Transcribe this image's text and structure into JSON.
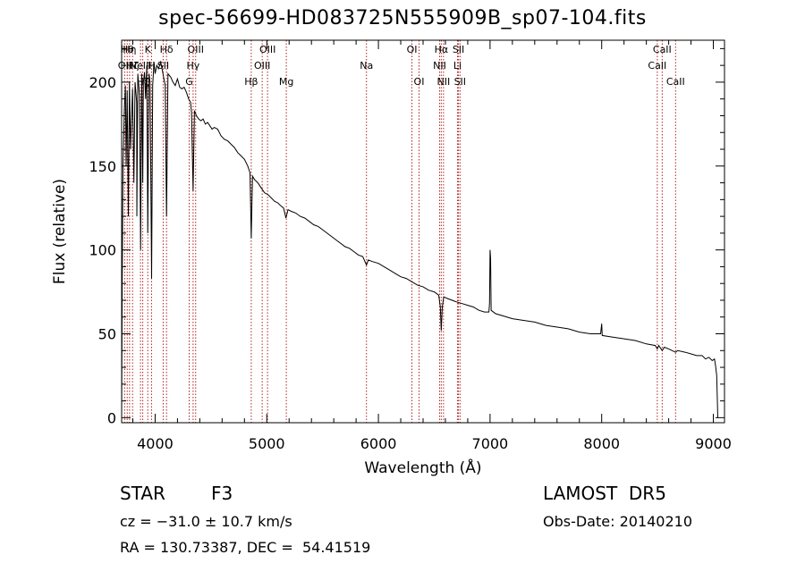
{
  "title": "spec-56699-HD083725N555909B_sp07-104.fits",
  "info": {
    "object_class": "STAR",
    "subclass": "F3",
    "survey": "LAMOST  DR5",
    "cz": "cz = −31.0 ± 10.7 km/s",
    "obs_date": "Obs-Date: 20140210",
    "coords": "RA = 130.73387, DEC =  54.41519"
  },
  "chart_data": {
    "type": "line",
    "xlabel": "Wavelength (Å)",
    "ylabel": "Flux (relative)",
    "xlim": [
      3700,
      9100
    ],
    "ylim": [
      -3,
      225
    ],
    "xticks": [
      4000,
      5000,
      6000,
      7000,
      8000,
      9000
    ],
    "yticks": [
      0,
      50,
      100,
      150,
      200
    ],
    "grid": false,
    "line_color": "#000000",
    "marker_color": "#b22222",
    "series": [
      {
        "points": [
          [
            3700,
            0
          ],
          [
            3705,
            80
          ],
          [
            3712,
            150
          ],
          [
            3725,
            185
          ],
          [
            3734,
            198
          ],
          [
            3740,
            150
          ],
          [
            3750,
            195
          ],
          [
            3760,
            120
          ],
          [
            3770,
            200
          ],
          [
            3780,
            160
          ],
          [
            3798,
            196
          ],
          [
            3810,
            140
          ],
          [
            3820,
            200
          ],
          [
            3835,
            188
          ],
          [
            3836,
            120
          ],
          [
            3845,
            205
          ],
          [
            3860,
            192
          ],
          [
            3870,
            100
          ],
          [
            3880,
            205
          ],
          [
            3889,
            140
          ],
          [
            3895,
            200
          ],
          [
            3905,
            206
          ],
          [
            3915,
            190
          ],
          [
            3925,
            210
          ],
          [
            3934,
            110
          ],
          [
            3945,
            205
          ],
          [
            3955,
            200
          ],
          [
            3968,
            83
          ],
          [
            3978,
            198
          ],
          [
            3990,
            212
          ],
          [
            4000,
            205
          ],
          [
            4015,
            210
          ],
          [
            4030,
            208
          ],
          [
            4050,
            212
          ],
          [
            4070,
            205
          ],
          [
            4090,
            198
          ],
          [
            4102,
            120
          ],
          [
            4115,
            205
          ],
          [
            4140,
            203
          ],
          [
            4160,
            200
          ],
          [
            4180,
            198
          ],
          [
            4200,
            202
          ],
          [
            4220,
            197
          ],
          [
            4240,
            196
          ],
          [
            4260,
            197
          ],
          [
            4280,
            194
          ],
          [
            4300,
            190
          ],
          [
            4318,
            188
          ],
          [
            4326,
            182
          ],
          [
            4340,
            135
          ],
          [
            4352,
            183
          ],
          [
            4370,
            180
          ],
          [
            4390,
            178
          ],
          [
            4410,
            177
          ],
          [
            4430,
            178
          ],
          [
            4450,
            175
          ],
          [
            4470,
            176
          ],
          [
            4490,
            174
          ],
          [
            4510,
            172
          ],
          [
            4530,
            173
          ],
          [
            4560,
            172
          ],
          [
            4590,
            168
          ],
          [
            4620,
            166
          ],
          [
            4650,
            165
          ],
          [
            4680,
            163
          ],
          [
            4710,
            161
          ],
          [
            4740,
            158
          ],
          [
            4770,
            156
          ],
          [
            4800,
            154
          ],
          [
            4830,
            150
          ],
          [
            4850,
            146
          ],
          [
            4861,
            107
          ],
          [
            4872,
            144
          ],
          [
            4890,
            142
          ],
          [
            4920,
            140
          ],
          [
            4950,
            137
          ],
          [
            4980,
            134
          ],
          [
            5010,
            133
          ],
          [
            5040,
            131
          ],
          [
            5070,
            129
          ],
          [
            5100,
            128
          ],
          [
            5130,
            126
          ],
          [
            5150,
            125
          ],
          [
            5172,
            119
          ],
          [
            5190,
            124
          ],
          [
            5220,
            123
          ],
          [
            5260,
            122
          ],
          [
            5300,
            120
          ],
          [
            5340,
            119
          ],
          [
            5380,
            117
          ],
          [
            5420,
            115
          ],
          [
            5460,
            114
          ],
          [
            5500,
            112
          ],
          [
            5540,
            110
          ],
          [
            5580,
            108
          ],
          [
            5620,
            106
          ],
          [
            5660,
            104
          ],
          [
            5700,
            102
          ],
          [
            5740,
            101
          ],
          [
            5780,
            99
          ],
          [
            5820,
            97
          ],
          [
            5860,
            96
          ],
          [
            5893,
            91
          ],
          [
            5910,
            94
          ],
          [
            5950,
            93
          ],
          [
            6000,
            92
          ],
          [
            6050,
            90
          ],
          [
            6100,
            88
          ],
          [
            6150,
            86
          ],
          [
            6200,
            84
          ],
          [
            6250,
            83
          ],
          [
            6300,
            81
          ],
          [
            6350,
            79
          ],
          [
            6400,
            78
          ],
          [
            6450,
            76
          ],
          [
            6500,
            75
          ],
          [
            6540,
            73
          ],
          [
            6555,
            66
          ],
          [
            6563,
            52
          ],
          [
            6572,
            66
          ],
          [
            6585,
            72
          ],
          [
            6620,
            71
          ],
          [
            6660,
            70
          ],
          [
            6700,
            69
          ],
          [
            6750,
            68
          ],
          [
            6800,
            67
          ],
          [
            6850,
            66
          ],
          [
            6900,
            64
          ],
          [
            6950,
            63
          ],
          [
            6990,
            63
          ],
          [
            6995,
            68
          ],
          [
            7000,
            100
          ],
          [
            7005,
            95
          ],
          [
            7010,
            64
          ],
          [
            7050,
            62
          ],
          [
            7100,
            61
          ],
          [
            7200,
            59
          ],
          [
            7300,
            58
          ],
          [
            7400,
            57
          ],
          [
            7500,
            55
          ],
          [
            7600,
            54
          ],
          [
            7700,
            53
          ],
          [
            7800,
            51
          ],
          [
            7900,
            50
          ],
          [
            7990,
            50
          ],
          [
            7995,
            53
          ],
          [
            8000,
            56
          ],
          [
            8005,
            49
          ],
          [
            8100,
            48
          ],
          [
            8200,
            47
          ],
          [
            8300,
            46
          ],
          [
            8400,
            44
          ],
          [
            8480,
            43
          ],
          [
            8498,
            41
          ],
          [
            8510,
            43
          ],
          [
            8542,
            40
          ],
          [
            8560,
            42
          ],
          [
            8600,
            41
          ],
          [
            8662,
            39
          ],
          [
            8680,
            40
          ],
          [
            8750,
            39
          ],
          [
            8800,
            38
          ],
          [
            8850,
            37
          ],
          [
            8900,
            37
          ],
          [
            8930,
            35
          ],
          [
            8960,
            36
          ],
          [
            8990,
            34
          ],
          [
            9010,
            35
          ],
          [
            9020,
            31
          ],
          [
            9030,
            25
          ],
          [
            9040,
            0
          ]
        ]
      }
    ],
    "markers": [
      {
        "wavelength": 3727,
        "labels": [
          "OII"
        ],
        "row": 2
      },
      {
        "wavelength": 3750,
        "labels": [
          "Hθ"
        ],
        "row": 1
      },
      {
        "wavelength": 3771,
        "labels": [
          "Hη"
        ],
        "row": 1
      },
      {
        "wavelength": 3798,
        "labels": [
          "Hζ"
        ],
        "row": 2
      },
      {
        "wavelength": 3869,
        "labels": [
          "NeIII"
        ],
        "row": 2
      },
      {
        "wavelength": 3889,
        "labels": [
          "Hζ"
        ],
        "row": 3
      },
      {
        "wavelength": 3934,
        "labels": [
          "K"
        ],
        "row": 1
      },
      {
        "wavelength": 3968,
        "labels": [
          "H"
        ],
        "row": 2
      },
      {
        "wavelength": 4072,
        "labels": [
          "SII"
        ],
        "row": 2
      },
      {
        "wavelength": 4102,
        "labels": [
          "Hδ"
        ],
        "row": 1
      },
      {
        "wavelength": 4305,
        "labels": [
          "G"
        ],
        "row": 3
      },
      {
        "wavelength": 4340,
        "labels": [
          "Hγ"
        ],
        "row": 2
      },
      {
        "wavelength": 4363,
        "labels": [
          "OIII"
        ],
        "row": 1
      },
      {
        "wavelength": 4861,
        "labels": [
          "Hβ"
        ],
        "row": 3
      },
      {
        "wavelength": 4959,
        "labels": [
          "OIII"
        ],
        "row": 2
      },
      {
        "wavelength": 5007,
        "labels": [
          "OIII"
        ],
        "row": 1
      },
      {
        "wavelength": 5175,
        "labels": [
          "Mg"
        ],
        "row": 3
      },
      {
        "wavelength": 5893,
        "labels": [
          "Na"
        ],
        "row": 2
      },
      {
        "wavelength": 6300,
        "labels": [
          "OI"
        ],
        "row": 1
      },
      {
        "wavelength": 6364,
        "labels": [
          "OI"
        ],
        "row": 3
      },
      {
        "wavelength": 6548,
        "labels": [
          "NII"
        ],
        "row": 2
      },
      {
        "wavelength": 6563,
        "labels": [
          "Hα"
        ],
        "row": 1
      },
      {
        "wavelength": 6583,
        "labels": [
          "NII"
        ],
        "row": 3
      },
      {
        "wavelength": 6708,
        "labels": [
          "Li"
        ],
        "row": 2
      },
      {
        "wavelength": 6717,
        "labels": [
          "SII"
        ],
        "row": 1
      },
      {
        "wavelength": 6731,
        "labels": [
          "SII"
        ],
        "row": 3
      },
      {
        "wavelength": 8498,
        "labels": [
          "CaII"
        ],
        "row": 2
      },
      {
        "wavelength": 8542,
        "labels": [
          "CaII"
        ],
        "row": 1
      },
      {
        "wavelength": 8662,
        "labels": [
          "CaII"
        ],
        "row": 3
      }
    ]
  }
}
